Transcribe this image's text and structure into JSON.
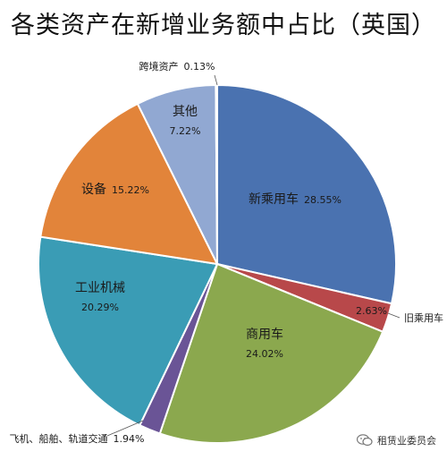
{
  "chart_data": {
    "type": "pie",
    "title": "各类资产在新增业务额中占比（英国）",
    "slices": [
      {
        "label": "新乘用车",
        "value": 28.55,
        "value_text": "28.55%",
        "color": "#4a72b0"
      },
      {
        "label": "旧乘用车",
        "value": 2.63,
        "value_text": "2.63%",
        "color": "#b8484a"
      },
      {
        "label": "商用车",
        "value": 24.02,
        "value_text": "24.02%",
        "color": "#8ba84e"
      },
      {
        "label": "飞机、船舶、轨道交通",
        "value": 1.94,
        "value_text": "1.94%",
        "color": "#6a5496"
      },
      {
        "label": "工业机械",
        "value": 20.29,
        "value_text": "20.29%",
        "color": "#3a9cb5"
      },
      {
        "label": "设备",
        "value": 15.22,
        "value_text": "15.22%",
        "color": "#e2843a"
      },
      {
        "label": "其他",
        "value": 7.22,
        "value_text": "7.22%",
        "color": "#91a8d2"
      },
      {
        "label": "跨境资产",
        "value": 0.13,
        "value_text": "0.13%",
        "color": "#c0504d"
      }
    ],
    "legend": "none",
    "start_angle": "12 o'clock",
    "direction": "clockwise"
  },
  "watermark": {
    "text": "租赁业委员会"
  }
}
